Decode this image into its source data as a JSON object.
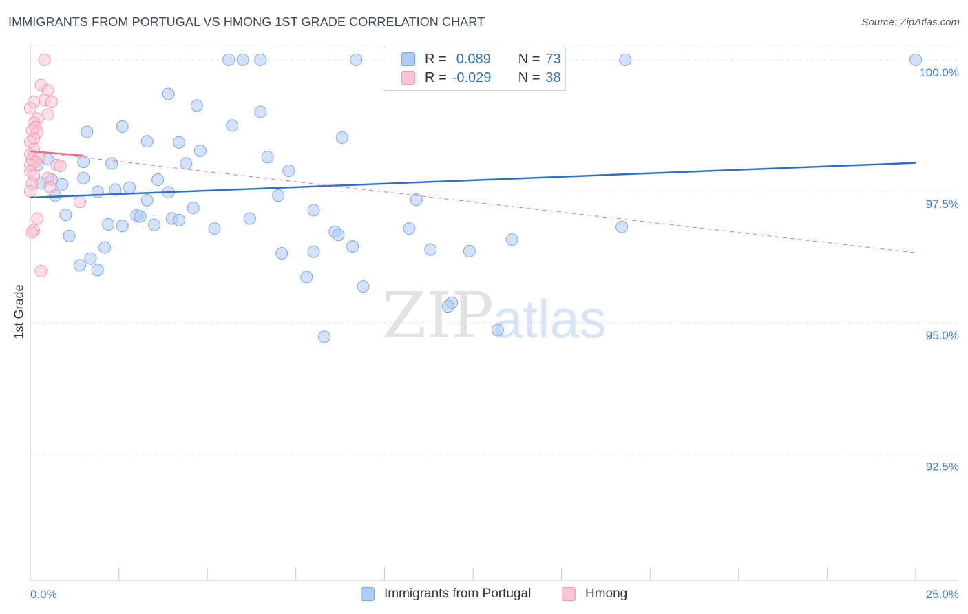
{
  "header": {
    "title": "IMMIGRANTS FROM PORTUGAL VS HMONG 1ST GRADE CORRELATION CHART",
    "source": "Source: ZipAtlas.com"
  },
  "watermark": {
    "zip": "ZIP",
    "atlas": "atlas"
  },
  "legend": {
    "r_label": "R =",
    "n_label": "N =",
    "rows": [
      {
        "name": "Immigrants from Portugal",
        "r": "0.089",
        "n": "73",
        "color": "#aecbf5",
        "border": "#7aa7e8"
      },
      {
        "name": "Hmong",
        "r": "-0.029",
        "n": "38",
        "color": "#f9c4d4",
        "border": "#ef9ab3"
      }
    ]
  },
  "chart_data": {
    "type": "scatter",
    "title": "IMMIGRANTS FROM PORTUGAL VS HMONG 1ST GRADE CORRELATION CHART",
    "xlabel": "",
    "ylabel": "1st Grade",
    "xlim": [
      0,
      25
    ],
    "ylim": [
      90.1,
      100.3
    ],
    "x_tick_labels": [
      "0.0%",
      "25.0%"
    ],
    "y_ticks": [
      {
        "value": 100.0,
        "label": "100.0%"
      },
      {
        "value": 97.5,
        "label": "97.5%"
      },
      {
        "value": 95.0,
        "label": "95.0%"
      },
      {
        "value": 92.5,
        "label": "92.5%"
      }
    ],
    "grid": true,
    "legend_position": "top-center",
    "series": [
      {
        "name": "Immigrants from Portugal",
        "color": "#7aa7e8",
        "fill": "#aecbf5",
        "trend": {
          "x": [
            0,
            25
          ],
          "y": [
            97.38,
            98.04
          ],
          "color": "#2f6fcf"
        },
        "points": [
          [
            5.6,
            100.0
          ],
          [
            6.0,
            100.0
          ],
          [
            6.5,
            100.0
          ],
          [
            9.2,
            100.0
          ],
          [
            16.8,
            100.0
          ],
          [
            25.0,
            100.0
          ],
          [
            3.9,
            99.35
          ],
          [
            4.7,
            99.13
          ],
          [
            6.5,
            99.01
          ],
          [
            2.6,
            98.73
          ],
          [
            5.7,
            98.75
          ],
          [
            1.6,
            98.63
          ],
          [
            3.3,
            98.45
          ],
          [
            4.2,
            98.43
          ],
          [
            4.8,
            98.27
          ],
          [
            8.8,
            98.52
          ],
          [
            6.7,
            98.15
          ],
          [
            0.5,
            98.11
          ],
          [
            2.3,
            98.03
          ],
          [
            4.4,
            98.03
          ],
          [
            0.2,
            98.0
          ],
          [
            1.5,
            98.06
          ],
          [
            7.3,
            97.89
          ],
          [
            0.6,
            97.72
          ],
          [
            1.5,
            97.75
          ],
          [
            3.6,
            97.72
          ],
          [
            0.3,
            97.65
          ],
          [
            0.9,
            97.63
          ],
          [
            2.8,
            97.57
          ],
          [
            2.4,
            97.53
          ],
          [
            1.9,
            97.49
          ],
          [
            3.9,
            97.48
          ],
          [
            0.7,
            97.42
          ],
          [
            7.0,
            97.42
          ],
          [
            3.3,
            97.33
          ],
          [
            4.6,
            97.18
          ],
          [
            8.0,
            97.14
          ],
          [
            10.9,
            97.34
          ],
          [
            1.0,
            97.05
          ],
          [
            3.0,
            97.04
          ],
          [
            3.1,
            97.02
          ],
          [
            4.0,
            96.98
          ],
          [
            4.2,
            96.95
          ],
          [
            6.2,
            96.98
          ],
          [
            3.5,
            96.86
          ],
          [
            2.2,
            96.87
          ],
          [
            2.6,
            96.84
          ],
          [
            5.2,
            96.79
          ],
          [
            8.6,
            96.73
          ],
          [
            10.7,
            96.79
          ],
          [
            8.7,
            96.67
          ],
          [
            1.1,
            96.65
          ],
          [
            16.7,
            96.82
          ],
          [
            13.6,
            96.58
          ],
          [
            9.1,
            96.45
          ],
          [
            2.1,
            96.43
          ],
          [
            11.3,
            96.39
          ],
          [
            7.1,
            96.32
          ],
          [
            8.0,
            96.35
          ],
          [
            12.4,
            96.36
          ],
          [
            1.7,
            96.22
          ],
          [
            1.4,
            96.09
          ],
          [
            1.9,
            96.0
          ],
          [
            7.8,
            95.87
          ],
          [
            9.4,
            95.69
          ],
          [
            11.9,
            95.38
          ],
          [
            11.8,
            95.31
          ],
          [
            13.2,
            94.86
          ],
          [
            8.3,
            94.73
          ]
        ]
      },
      {
        "name": "Hmong",
        "color": "#ef9ab3",
        "fill": "#f9c4d4",
        "trend_solid": {
          "x": [
            0,
            1.5
          ],
          "y": [
            98.26,
            98.18
          ],
          "color": "#e8708f"
        },
        "trend_dashed": {
          "x": [
            0,
            25
          ],
          "y": [
            98.26,
            96.33
          ],
          "color": "#e8708f"
        },
        "points": [
          [
            0.4,
            100.0
          ],
          [
            0.3,
            99.52
          ],
          [
            0.5,
            99.42
          ],
          [
            0.4,
            99.24
          ],
          [
            0.6,
            99.2
          ],
          [
            0.1,
            99.2
          ],
          [
            0.0,
            99.08
          ],
          [
            0.5,
            98.96
          ],
          [
            0.2,
            98.88
          ],
          [
            0.1,
            98.8
          ],
          [
            0.15,
            98.72
          ],
          [
            0.05,
            98.66
          ],
          [
            0.2,
            98.62
          ],
          [
            0.1,
            98.5
          ],
          [
            0.0,
            98.44
          ],
          [
            0.1,
            98.3
          ],
          [
            0.0,
            98.2
          ],
          [
            0.25,
            98.15
          ],
          [
            0.05,
            98.1
          ],
          [
            0.15,
            98.06
          ],
          [
            0.0,
            98.0
          ],
          [
            0.75,
            98.0
          ],
          [
            0.85,
            97.98
          ],
          [
            0.0,
            97.88
          ],
          [
            0.1,
            97.8
          ],
          [
            0.5,
            97.75
          ],
          [
            0.05,
            97.64
          ],
          [
            0.55,
            97.58
          ],
          [
            0.0,
            97.5
          ],
          [
            1.4,
            97.3
          ],
          [
            0.2,
            96.98
          ],
          [
            0.1,
            96.76
          ],
          [
            0.05,
            96.72
          ],
          [
            0.3,
            95.98
          ]
        ]
      }
    ]
  }
}
